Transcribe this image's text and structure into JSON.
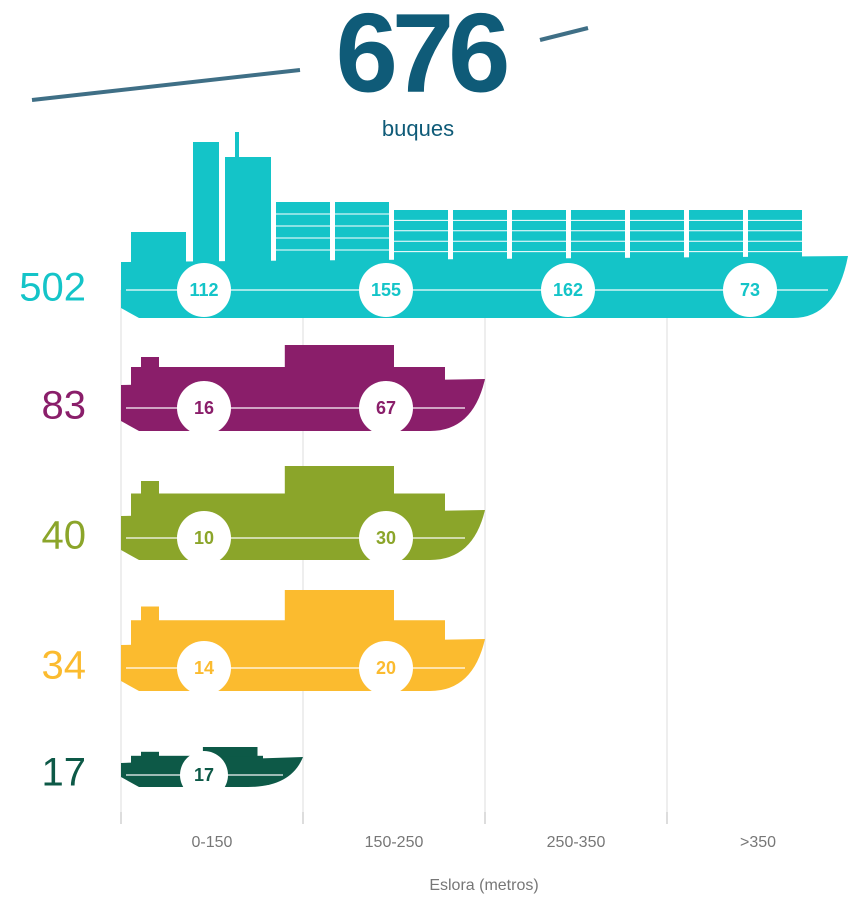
{
  "chart_data": {
    "type": "ship-bar",
    "title": 676,
    "subtitle": "buques",
    "title_color": "#0f5b78",
    "categories": [
      "0-150",
      "150-250",
      "250-350",
      ">350"
    ],
    "xlabel": "Eslora (metros)",
    "series": [
      {
        "total": 502,
        "color": "#14c4c8",
        "values": [
          112,
          155,
          162,
          73
        ]
      },
      {
        "total": 83,
        "color": "#8a1e6a",
        "values": [
          16,
          67,
          null,
          null
        ]
      },
      {
        "total": 40,
        "color": "#8ba52a",
        "values": [
          10,
          30,
          null,
          null
        ]
      },
      {
        "total": 34,
        "color": "#fbbb2f",
        "values": [
          14,
          20,
          null,
          null
        ]
      },
      {
        "total": 17,
        "color": "#0d5947",
        "values": [
          17,
          null,
          null,
          null
        ]
      }
    ]
  }
}
